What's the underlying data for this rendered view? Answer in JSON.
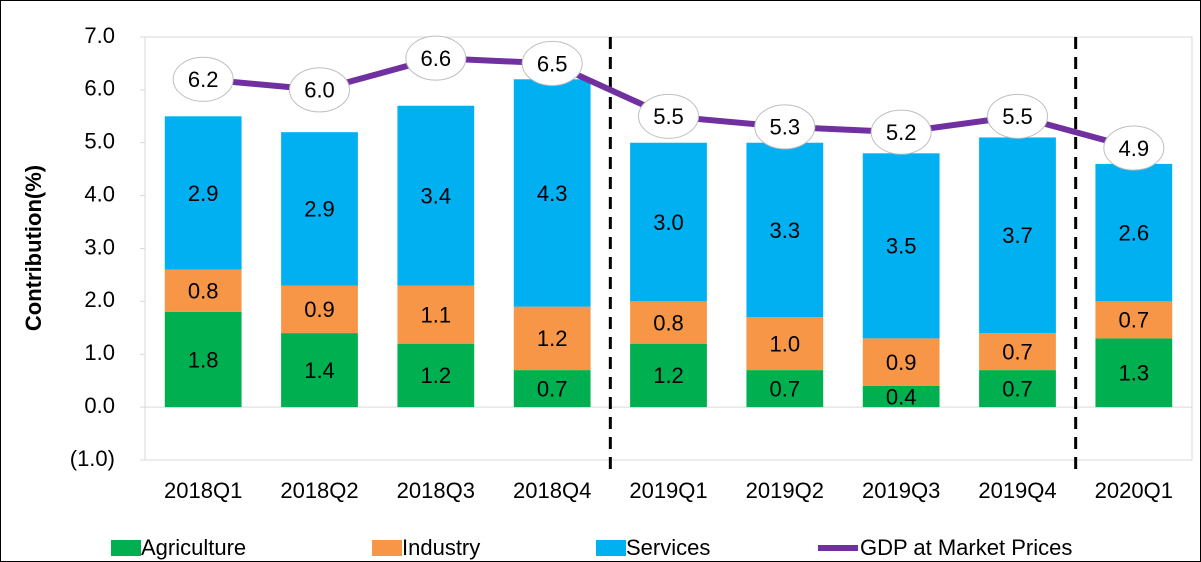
{
  "chart_data": {
    "type": "stacked-bar-line",
    "y_label": "Contribution(%)",
    "categories": [
      "2018Q1",
      "2018Q2",
      "2018Q3",
      "2018Q4",
      "2019Q1",
      "2019Q2",
      "2019Q3",
      "2019Q4",
      "2020Q1"
    ],
    "series": [
      {
        "name": "Agriculture",
        "color": "#00b050",
        "type": "bar",
        "values": [
          1.8,
          1.4,
          1.2,
          0.7,
          1.2,
          0.7,
          0.4,
          0.7,
          1.3
        ],
        "value_labels": [
          "1.8",
          "1.4",
          "1.2",
          "0.7",
          "1.2",
          "0.7",
          "0.4",
          "0.7",
          "1.3"
        ]
      },
      {
        "name": "Industry",
        "color": "#f79646",
        "type": "bar",
        "values": [
          0.8,
          0.9,
          1.1,
          1.2,
          0.8,
          1.0,
          0.9,
          0.7,
          0.7
        ],
        "value_labels": [
          "0.8",
          "0.9",
          "1.1",
          "1.2",
          "0.8",
          "1.0",
          "0.9",
          "0.7",
          "0.7"
        ]
      },
      {
        "name": "Services",
        "color": "#00b0f0",
        "type": "bar",
        "values": [
          2.9,
          2.9,
          3.4,
          4.3,
          3.0,
          3.3,
          3.5,
          3.7,
          2.6
        ],
        "value_labels": [
          "2.9",
          "2.9",
          "3.4",
          "4.3",
          "3.0",
          "3.3",
          "3.5",
          "3.7",
          "2.6"
        ]
      },
      {
        "name": "GDP at Market Prices",
        "color": "#7030a0",
        "type": "line",
        "values": [
          6.2,
          6.0,
          6.6,
          6.5,
          5.5,
          5.3,
          5.2,
          5.5,
          4.9
        ],
        "value_labels": [
          "6.2",
          "6.0",
          "6.6",
          "6.5",
          "5.5",
          "5.3",
          "5.2",
          "5.5",
          "4.9"
        ]
      }
    ],
    "ylim": [
      -1,
      7
    ],
    "yticks": [
      {
        "value": -1,
        "label": "(1.0)"
      },
      {
        "value": 0,
        "label": "0.0"
      },
      {
        "value": 1,
        "label": "1.0"
      },
      {
        "value": 2,
        "label": "2.0"
      },
      {
        "value": 3,
        "label": "3.0"
      },
      {
        "value": 4,
        "label": "4.0"
      },
      {
        "value": 5,
        "label": "5.0"
      },
      {
        "value": 6,
        "label": "6.0"
      },
      {
        "value": 7,
        "label": "7.0"
      }
    ],
    "legend": "bottom"
  }
}
